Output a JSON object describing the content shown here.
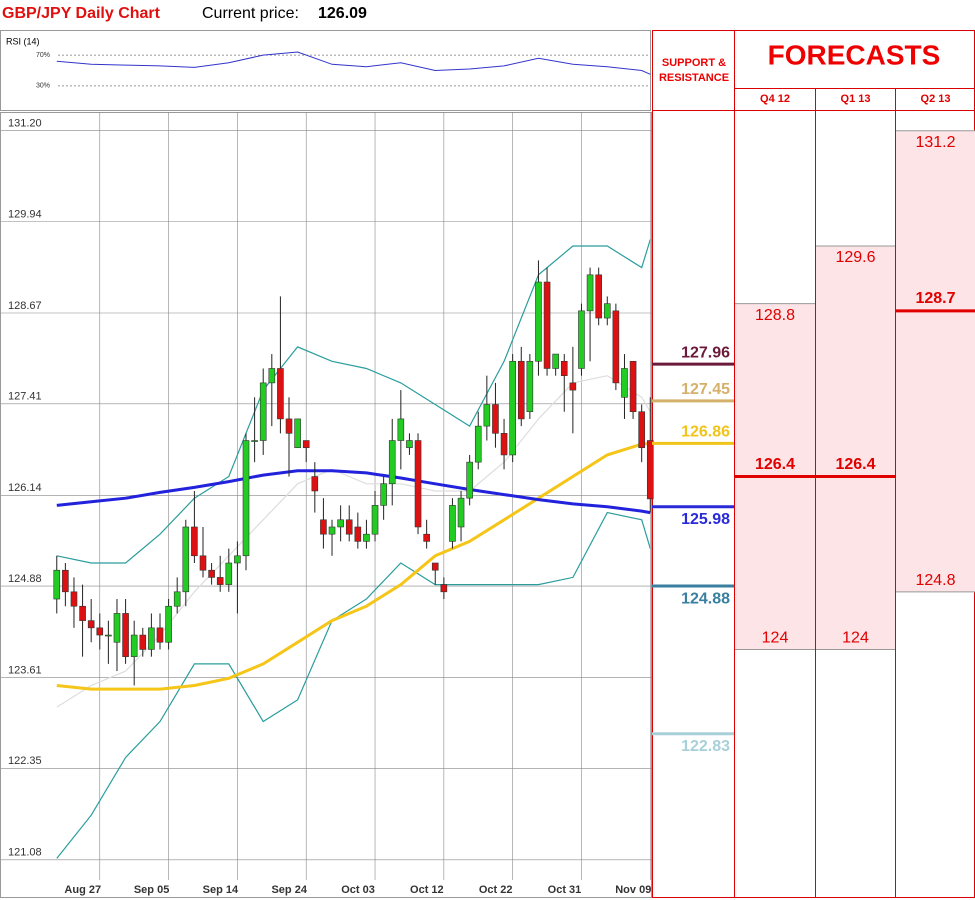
{
  "chart_data": {
    "type": "candlestick",
    "title": "GBP/JPY Daily Chart",
    "current_price_label": "Current price:",
    "current_price": 126.09,
    "xlim": [
      -6.6,
      69.2
    ],
    "ylim": [
      120.8,
      131.46
    ],
    "yticks": [
      {
        "value": 131.2,
        "label": "131.20"
      },
      129.94,
      128.67,
      127.41,
      126.14,
      124.88,
      123.61,
      122.35,
      121.08
    ],
    "xticks": [
      {
        "value": 5,
        "label": "Aug 27"
      },
      {
        "value": 13,
        "label": "Sep 05"
      },
      {
        "value": 21,
        "label": "Sep 14"
      },
      {
        "value": 29,
        "label": "Sep 24"
      },
      {
        "value": 37,
        "label": "Oct 03"
      },
      {
        "value": 45,
        "label": "Oct 12"
      },
      {
        "value": 53,
        "label": "Oct 22"
      },
      {
        "value": 61,
        "label": "Oct 31"
      },
      {
        "value": 69,
        "label": "Nov 09"
      }
    ],
    "grid": true,
    "up_color": "#22cc22",
    "down_color": "#dd1111",
    "open": [
      124.7,
      125.1,
      124.8,
      124.6,
      124.4,
      124.3,
      124.2,
      124.1,
      124.5,
      123.9,
      124.2,
      124.0,
      124.3,
      124.1,
      124.6,
      124.8,
      125.7,
      125.3,
      125.1,
      125.0,
      124.9,
      125.2,
      125.3,
      126.9,
      126.9,
      127.7,
      127.9,
      127.2,
      126.8,
      126.9,
      126.4,
      125.8,
      125.6,
      125.7,
      125.8,
      125.7,
      125.5,
      125.6,
      126.0,
      126.3,
      126.9,
      126.8,
      126.9,
      125.6,
      125.2,
      124.9,
      125.5,
      125.7,
      126.1,
      126.6,
      127.1,
      127.4,
      127.0,
      126.7,
      128.0,
      127.3,
      128.0,
      129.1,
      127.9,
      128.0,
      127.7,
      127.9,
      128.7,
      129.2,
      128.6,
      128.7,
      127.5,
      128.0,
      127.3,
      126.9
    ],
    "high": [
      125.3,
      125.2,
      125.0,
      124.9,
      124.7,
      124.5,
      124.4,
      124.7,
      124.7,
      124.4,
      124.3,
      124.5,
      124.5,
      124.7,
      125.0,
      125.8,
      126.2,
      125.7,
      125.2,
      125.3,
      125.4,
      125.5,
      127.0,
      127.5,
      127.9,
      128.1,
      128.9,
      127.5,
      127.2,
      126.9,
      126.6,
      126.1,
      125.8,
      126.0,
      126.0,
      125.9,
      125.8,
      126.2,
      126.4,
      127.2,
      127.6,
      127.0,
      127.0,
      125.8,
      125.2,
      125.0,
      126.1,
      126.2,
      126.7,
      127.3,
      127.8,
      127.7,
      127.2,
      128.1,
      128.2,
      128.1,
      129.4,
      129.3,
      128.1,
      128.1,
      128.2,
      128.8,
      129.3,
      129.3,
      128.9,
      128.8,
      128.1,
      128.0,
      127.4,
      127.5
    ],
    "low": [
      124.5,
      124.6,
      124.3,
      123.9,
      124.1,
      124.0,
      123.8,
      123.7,
      123.8,
      123.5,
      123.9,
      123.9,
      124.0,
      124.0,
      124.5,
      124.6,
      125.2,
      125.0,
      124.9,
      124.8,
      124.8,
      124.5,
      125.1,
      126.6,
      126.7,
      127.1,
      127.0,
      126.4,
      126.8,
      126.6,
      125.9,
      125.4,
      125.3,
      125.5,
      125.5,
      125.4,
      125.4,
      125.5,
      125.8,
      126.0,
      126.5,
      126.7,
      125.6,
      125.4,
      124.9,
      124.7,
      125.4,
      125.5,
      126.0,
      126.5,
      126.9,
      126.8,
      126.5,
      126.6,
      127.1,
      127.2,
      127.8,
      127.8,
      127.8,
      127.3,
      127.0,
      127.8,
      128.0,
      128.5,
      128.5,
      127.6,
      127.2,
      127.2,
      126.6,
      125.9
    ],
    "close": [
      125.1,
      124.8,
      124.6,
      124.4,
      124.3,
      124.2,
      124.2,
      124.5,
      123.9,
      124.2,
      124.0,
      124.3,
      124.1,
      124.6,
      124.8,
      125.7,
      125.3,
      125.1,
      125.0,
      124.9,
      125.2,
      125.3,
      126.9,
      126.9,
      127.7,
      127.9,
      127.2,
      127.0,
      127.2,
      126.8,
      126.2,
      125.6,
      125.7,
      125.8,
      125.6,
      125.5,
      125.6,
      126.0,
      126.3,
      126.9,
      127.2,
      126.9,
      125.7,
      125.5,
      125.1,
      124.8,
      126.0,
      126.1,
      126.6,
      127.1,
      127.4,
      127.0,
      126.7,
      128.0,
      127.2,
      128.0,
      129.1,
      127.9,
      128.1,
      127.8,
      127.6,
      128.7,
      129.2,
      128.6,
      128.8,
      127.7,
      127.9,
      127.3,
      126.8,
      126.09
    ],
    "lines": [
      {
        "color": "#2a9d9d",
        "x": [
          0,
          4,
          8,
          12,
          16,
          20,
          24,
          28,
          32,
          36,
          40,
          44,
          48,
          52,
          56,
          60,
          64,
          68,
          69
        ],
        "values": [
          125.3,
          125.2,
          125.2,
          125.6,
          126.1,
          126.4,
          127.6,
          128.2,
          128.0,
          127.9,
          127.7,
          127.4,
          127.1,
          128.0,
          129.2,
          129.6,
          129.6,
          129.3,
          129.69
        ]
      },
      {
        "color": "#2a9d9d",
        "x": [
          0,
          4,
          8,
          12,
          16,
          20,
          24,
          28,
          32,
          36,
          40,
          44,
          48,
          52,
          56,
          60,
          64,
          68,
          69
        ],
        "values": [
          121.1,
          121.7,
          122.5,
          123.0,
          123.8,
          123.8,
          123.0,
          123.3,
          124.4,
          124.7,
          125.2,
          124.9,
          124.9,
          124.9,
          124.9,
          125.0,
          125.9,
          125.8,
          125.4
        ]
      },
      {
        "color": "#dddddd",
        "x": [
          0,
          4,
          8,
          12,
          16,
          20,
          24,
          28,
          32,
          36,
          40,
          44,
          48,
          52,
          56,
          60,
          64,
          68,
          69
        ],
        "values": [
          123.2,
          123.5,
          123.7,
          124.2,
          124.8,
          125.3,
          125.8,
          126.3,
          126.5,
          126.3,
          126.3,
          126.2,
          126.2,
          126.6,
          127.2,
          127.7,
          127.8,
          127.5,
          127.3
        ]
      },
      {
        "color": "#f5c518",
        "x": [
          0,
          4,
          8,
          12,
          16,
          20,
          24,
          28,
          32,
          36,
          40,
          44,
          48,
          52,
          56,
          60,
          64,
          68,
          69
        ],
        "values": [
          123.5,
          123.45,
          123.45,
          123.45,
          123.5,
          123.6,
          123.8,
          124.1,
          124.4,
          124.6,
          124.9,
          125.3,
          125.5,
          125.8,
          126.1,
          126.4,
          126.7,
          126.85,
          126.86
        ]
      },
      {
        "color": "#2222dd",
        "x": [
          0,
          4,
          8,
          12,
          16,
          20,
          24,
          28,
          32,
          36,
          40,
          44,
          48,
          52,
          56,
          60,
          64,
          68,
          69
        ],
        "values": [
          126.0,
          126.05,
          126.1,
          126.18,
          126.25,
          126.33,
          126.42,
          126.48,
          126.48,
          126.45,
          126.38,
          126.3,
          126.22,
          126.15,
          126.08,
          126.02,
          125.98,
          125.92,
          125.9
        ]
      }
    ],
    "rsi": {
      "title": "RSI (14)",
      "color": "#3333cc",
      "ylim": [
        0,
        100
      ],
      "yticks": [
        {
          "value": 70,
          "label": "70%"
        },
        {
          "value": 30,
          "label": "30%"
        }
      ],
      "x": [
        0,
        4,
        8,
        12,
        16,
        20,
        24,
        28,
        32,
        36,
        40,
        44,
        48,
        52,
        56,
        60,
        64,
        68,
        69
      ],
      "values": [
        62,
        58,
        57,
        56,
        54,
        60,
        70,
        74,
        58,
        55,
        60,
        50,
        52,
        56,
        66,
        58,
        55,
        50,
        45
      ]
    },
    "support_resistance": {
      "title": "SUPPORT & RESISTANCE",
      "levels": [
        {
          "value": 127.96,
          "color": "#6b1a3a"
        },
        {
          "value": 127.45,
          "color": "#d4b06a"
        },
        {
          "value": 126.86,
          "color": "#f0c419"
        },
        {
          "value": 125.98,
          "color": "#2a2ad8"
        },
        {
          "value": 124.88,
          "color": "#3a7fa0"
        },
        {
          "value": 122.83,
          "color": "#a8d0d8"
        }
      ]
    },
    "forecasts": {
      "title": "FORECASTS",
      "fill": "#fde4e6",
      "color": "#e00000",
      "periods": [
        {
          "label": "Q4 12",
          "high": 128.8,
          "mid": 126.4,
          "low": 124
        },
        {
          "label": "Q1 13",
          "high": 129.6,
          "mid": 126.4,
          "low": 124
        },
        {
          "label": "Q2 13",
          "high": 131.2,
          "mid": 128.7,
          "low": 124.8
        }
      ]
    }
  }
}
